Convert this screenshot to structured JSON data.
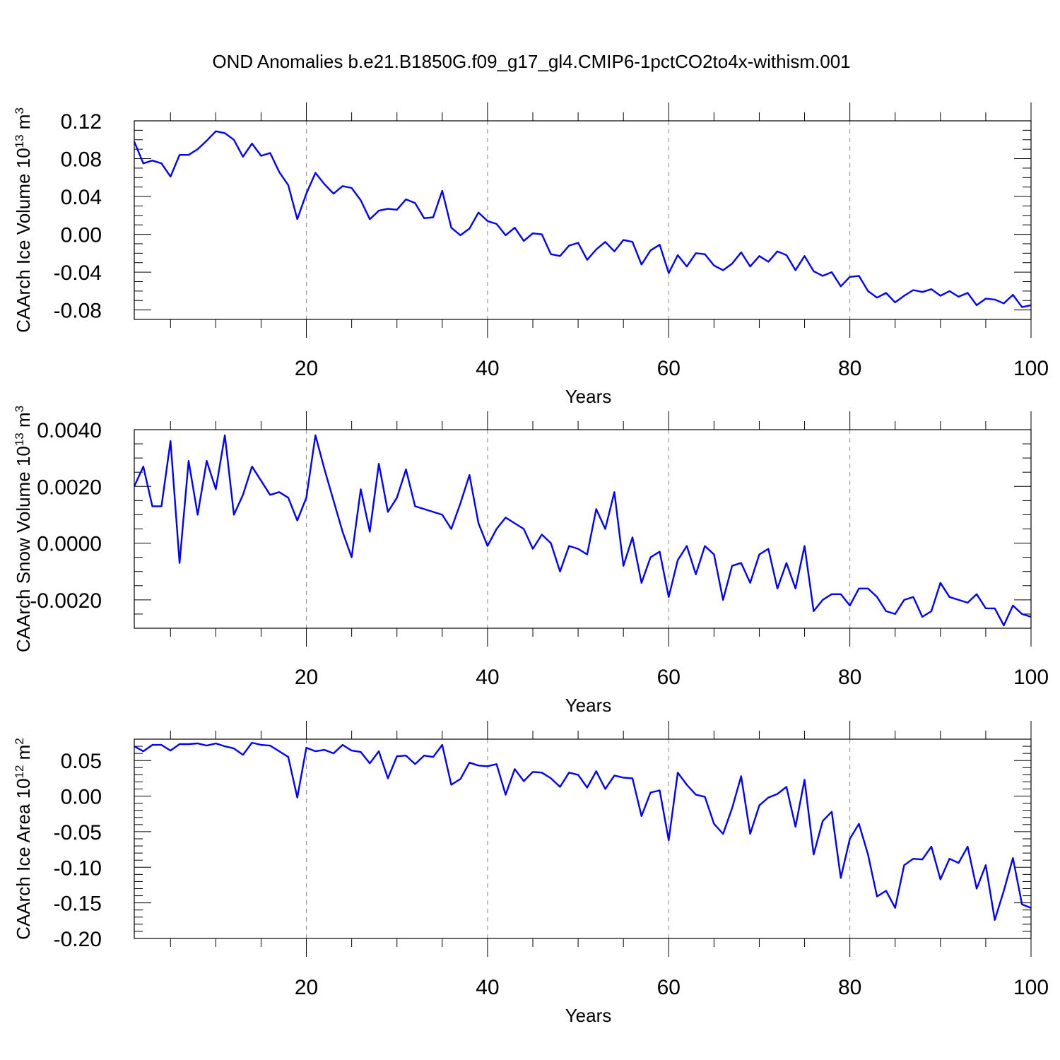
{
  "title": "OND Anomalies b.e21.B1850G.f09_g17_gl4.CMIP6-1pctCO2to4x-withism.001",
  "chart_data": [
    {
      "type": "line",
      "title": "OND Anomalies b.e21.B1850G.f09_g17_gl4.CMIP6-1pctCO2to4x-withism.001",
      "xlabel": "Years",
      "ylabel_base": "CAArch Ice Volume 10",
      "ylabel_exp": "13",
      "ylabel_unit": " m",
      "ylabel_unit_exp": "3",
      "xlim": [
        1,
        100
      ],
      "ylim": [
        -0.09,
        0.12
      ],
      "xticks": [
        20,
        40,
        60,
        80,
        100
      ],
      "xtick_labels": [
        "20",
        "40",
        "60",
        "80",
        "100"
      ],
      "yticks": [
        -0.08,
        -0.04,
        0.0,
        0.04,
        0.08,
        0.12
      ],
      "ytick_labels": [
        "-0.08",
        "-0.04",
        "0.00",
        "0.04",
        "0.08",
        "0.12"
      ],
      "y_minor_step": 0.01,
      "grid": "dashed vertical at major x ticks",
      "line_color": "#0000ff",
      "x_start": 1,
      "values": [
        0.098,
        0.075,
        0.078,
        0.075,
        0.061,
        0.084,
        0.084,
        0.09,
        0.099,
        0.109,
        0.107,
        0.1,
        0.082,
        0.096,
        0.083,
        0.086,
        0.066,
        0.052,
        0.016,
        0.043,
        0.065,
        0.053,
        0.043,
        0.051,
        0.049,
        0.036,
        0.016,
        0.025,
        0.027,
        0.026,
        0.037,
        0.033,
        0.017,
        0.018,
        0.046,
        0.007,
        -0.001,
        0.006,
        0.023,
        0.014,
        0.011,
        -0.001,
        0.007,
        -0.007,
        0.001,
        0.0,
        -0.021,
        -0.023,
        -0.012,
        -0.009,
        -0.027,
        -0.016,
        -0.008,
        -0.018,
        -0.006,
        -0.008,
        -0.032,
        -0.017,
        -0.011,
        -0.041,
        -0.022,
        -0.034,
        -0.02,
        -0.021,
        -0.033,
        -0.038,
        -0.031,
        -0.019,
        -0.034,
        -0.023,
        -0.029,
        -0.018,
        -0.022,
        -0.038,
        -0.023,
        -0.039,
        -0.044,
        -0.04,
        -0.055,
        -0.045,
        -0.044,
        -0.06,
        -0.067,
        -0.062,
        -0.072,
        -0.065,
        -0.059,
        -0.061,
        -0.058,
        -0.065,
        -0.06,
        -0.066,
        -0.062,
        -0.075,
        -0.068,
        -0.069,
        -0.073,
        -0.064,
        -0.077,
        -0.075
      ]
    },
    {
      "type": "line",
      "xlabel": "Years",
      "ylabel_base": "CAArch Snow Volume 10",
      "ylabel_exp": "13",
      "ylabel_unit": " m",
      "ylabel_unit_exp": "3",
      "xlim": [
        1,
        100
      ],
      "ylim": [
        -0.003,
        0.004
      ],
      "xticks": [
        20,
        40,
        60,
        80,
        100
      ],
      "xtick_labels": [
        "20",
        "40",
        "60",
        "80",
        "100"
      ],
      "yticks": [
        -0.002,
        0.0,
        0.002,
        0.004
      ],
      "ytick_labels": [
        "-0.0020",
        "0.0000",
        "0.0020",
        "0.0040"
      ],
      "y_minor_step": 0.0005,
      "grid": "dashed vertical at major x ticks",
      "line_color": "#0000ff",
      "x_start": 1,
      "values": [
        0.002,
        0.0027,
        0.0013,
        0.0013,
        0.0036,
        -0.0007,
        0.0029,
        0.001,
        0.0029,
        0.0019,
        0.0038,
        0.001,
        0.0017,
        0.0027,
        0.0022,
        0.0017,
        0.0018,
        0.0016,
        0.0008,
        0.0016,
        0.0038,
        0.0026,
        0.0015,
        0.0004,
        -0.0005,
        0.0019,
        0.0004,
        0.0028,
        0.0011,
        0.0016,
        0.0026,
        0.0013,
        0.0012,
        0.0011,
        0.001,
        0.0005,
        0.0014,
        0.0024,
        0.0007,
        -0.0001,
        0.0005,
        0.0009,
        0.0007,
        0.0005,
        -0.0002,
        0.0003,
        0.0,
        -0.001,
        -0.0001,
        -0.0002,
        -0.0004,
        0.0012,
        0.0005,
        0.0018,
        -0.0008,
        0.0002,
        -0.0014,
        -0.0005,
        -0.0003,
        -0.0019,
        -0.0006,
        -0.0001,
        -0.0011,
        -0.0001,
        -0.0004,
        -0.002,
        -0.0008,
        -0.0007,
        -0.0014,
        -0.0004,
        -0.0002,
        -0.0016,
        -0.0007,
        -0.0016,
        -0.0001,
        -0.0024,
        -0.002,
        -0.0018,
        -0.0018,
        -0.0022,
        -0.0016,
        -0.0016,
        -0.0019,
        -0.0024,
        -0.0025,
        -0.002,
        -0.0019,
        -0.0026,
        -0.0024,
        -0.0014,
        -0.0019,
        -0.002,
        -0.0021,
        -0.0018,
        -0.0023,
        -0.0023,
        -0.0029,
        -0.0022,
        -0.0025,
        -0.0026
      ]
    },
    {
      "type": "line",
      "xlabel": "Years",
      "ylabel_base": "CAArch Ice Area 10",
      "ylabel_exp": "12",
      "ylabel_unit": " m",
      "ylabel_unit_exp": "2",
      "xlim": [
        1,
        100
      ],
      "ylim": [
        -0.2,
        0.08
      ],
      "xticks": [
        20,
        40,
        60,
        80,
        100
      ],
      "xtick_labels": [
        "20",
        "40",
        "60",
        "80",
        "100"
      ],
      "yticks": [
        -0.2,
        -0.15,
        -0.1,
        -0.05,
        0.0,
        0.05
      ],
      "ytick_labels": [
        "-0.20",
        "-0.15",
        "-0.10",
        "-0.05",
        "0.00",
        "0.05"
      ],
      "y_minor_step": 0.01,
      "grid": "dashed vertical at major x ticks",
      "line_color": "#0000ff",
      "x_start": 1,
      "values": [
        0.07,
        0.063,
        0.072,
        0.072,
        0.064,
        0.073,
        0.073,
        0.074,
        0.071,
        0.074,
        0.07,
        0.067,
        0.058,
        0.075,
        0.072,
        0.071,
        0.063,
        0.055,
        -0.002,
        0.068,
        0.063,
        0.065,
        0.06,
        0.072,
        0.064,
        0.062,
        0.046,
        0.063,
        0.025,
        0.056,
        0.057,
        0.045,
        0.057,
        0.055,
        0.072,
        0.016,
        0.024,
        0.047,
        0.043,
        0.042,
        0.045,
        0.002,
        0.038,
        0.021,
        0.034,
        0.033,
        0.025,
        0.013,
        0.033,
        0.03,
        0.012,
        0.035,
        0.01,
        0.029,
        0.026,
        0.025,
        -0.028,
        0.005,
        0.008,
        -0.062,
        0.033,
        0.016,
        0.002,
        -0.001,
        -0.039,
        -0.053,
        -0.017,
        0.028,
        -0.053,
        -0.013,
        -0.002,
        0.003,
        0.013,
        -0.043,
        0.023,
        -0.082,
        -0.035,
        -0.022,
        -0.115,
        -0.06,
        -0.039,
        -0.082,
        -0.141,
        -0.133,
        -0.157,
        -0.097,
        -0.088,
        -0.089,
        -0.071,
        -0.117,
        -0.088,
        -0.094,
        -0.071,
        -0.13,
        -0.097,
        -0.174,
        -0.133,
        -0.087,
        -0.152,
        -0.157
      ]
    }
  ]
}
